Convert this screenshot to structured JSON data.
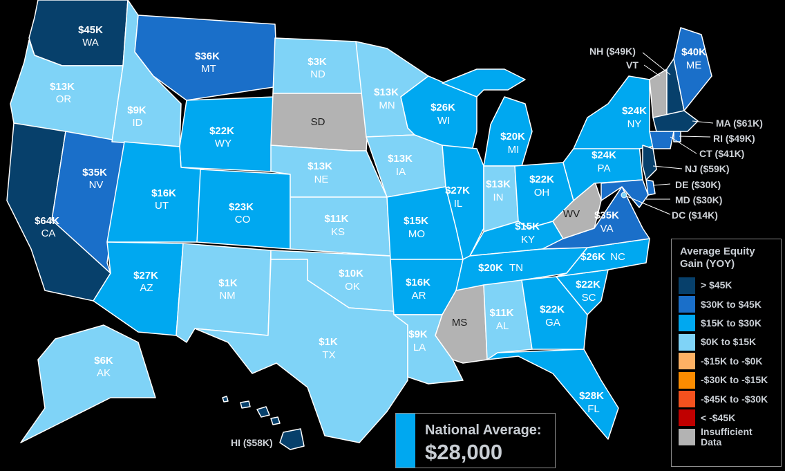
{
  "colors": {
    "dark": "#07406b",
    "mid": "#1a6fc9",
    "bright": "#00a8f0",
    "light": "#7fd3f7",
    "gray": "#b3b3b3",
    "lt_orange": "#fdb164",
    "orange": "#fb8c00",
    "red_orange": "#f4511e",
    "red": "#c00000"
  },
  "states": {
    "WA": {
      "value": "$45K",
      "code": "WA",
      "tier": "dark"
    },
    "OR": {
      "value": "$13K",
      "code": "OR",
      "tier": "light"
    },
    "CA": {
      "value": "$64K",
      "code": "CA",
      "tier": "dark"
    },
    "NV": {
      "value": "$35K",
      "code": "NV",
      "tier": "mid"
    },
    "ID": {
      "value": "$9K",
      "code": "ID",
      "tier": "light"
    },
    "MT": {
      "value": "$36K",
      "code": "MT",
      "tier": "mid"
    },
    "WY": {
      "value": "$22K",
      "code": "WY",
      "tier": "bright"
    },
    "UT": {
      "value": "$16K",
      "code": "UT",
      "tier": "bright"
    },
    "AZ": {
      "value": "$27K",
      "code": "AZ",
      "tier": "bright"
    },
    "CO": {
      "value": "$23K",
      "code": "CO",
      "tier": "bright"
    },
    "NM": {
      "value": "$1K",
      "code": "NM",
      "tier": "light"
    },
    "ND": {
      "value": "$3K",
      "code": "ND",
      "tier": "light"
    },
    "SD": {
      "value": "",
      "code": "SD",
      "tier": "gray"
    },
    "NE": {
      "value": "$13K",
      "code": "NE",
      "tier": "light"
    },
    "KS": {
      "value": "$11K",
      "code": "KS",
      "tier": "light"
    },
    "OK": {
      "value": "$10K",
      "code": "OK",
      "tier": "light"
    },
    "TX": {
      "value": "$1K",
      "code": "TX",
      "tier": "light"
    },
    "MN": {
      "value": "$13K",
      "code": "MN",
      "tier": "light"
    },
    "IA": {
      "value": "$13K",
      "code": "IA",
      "tier": "light"
    },
    "MO": {
      "value": "$15K",
      "code": "MO",
      "tier": "bright"
    },
    "AR": {
      "value": "$16K",
      "code": "AR",
      "tier": "bright"
    },
    "LA": {
      "value": "$9K",
      "code": "LA",
      "tier": "light"
    },
    "WI": {
      "value": "$26K",
      "code": "WI",
      "tier": "bright"
    },
    "IL": {
      "value": "$27K",
      "code": "IL",
      "tier": "bright"
    },
    "MI": {
      "value": "$20K",
      "code": "MI",
      "tier": "bright"
    },
    "IN": {
      "value": "$13K",
      "code": "IN",
      "tier": "light"
    },
    "OH": {
      "value": "$22K",
      "code": "OH",
      "tier": "bright"
    },
    "KY": {
      "value": "$15K",
      "code": "KY",
      "tier": "bright"
    },
    "TN": {
      "value": "$20K",
      "code": "TN",
      "tier": "bright"
    },
    "MS": {
      "value": "",
      "code": "MS",
      "tier": "gray"
    },
    "AL": {
      "value": "$11K",
      "code": "AL",
      "tier": "light"
    },
    "GA": {
      "value": "$22K",
      "code": "GA",
      "tier": "bright"
    },
    "FL": {
      "value": "$28K",
      "code": "FL",
      "tier": "bright"
    },
    "SC": {
      "value": "$22K",
      "code": "SC",
      "tier": "bright"
    },
    "NC": {
      "value": "$26K",
      "code": "NC",
      "tier": "bright"
    },
    "VA": {
      "value": "$35K",
      "code": "VA",
      "tier": "mid"
    },
    "WV": {
      "value": "",
      "code": "WV",
      "tier": "gray"
    },
    "PA": {
      "value": "$24K",
      "code": "PA",
      "tier": "bright"
    },
    "NY": {
      "value": "$24K",
      "code": "NY",
      "tier": "bright"
    },
    "ME": {
      "value": "$40K",
      "code": "ME",
      "tier": "mid"
    },
    "AK": {
      "value": "$6K",
      "code": "AK",
      "tier": "light"
    }
  },
  "callouts": {
    "NH": "NH ($49K)",
    "VT": "VT",
    "MA": "MA ($61K)",
    "RI": "RI ($49K)",
    "CT": "CT ($41K)",
    "NJ": "NJ ($59K)",
    "DE": "DE ($30K)",
    "MD": "MD ($30K)",
    "DC": "DC ($14K)",
    "HI": "HI ($58K)"
  },
  "legend": {
    "title_line1": "Average Equity",
    "title_line2": "Gain (YOY)",
    "items": [
      {
        "label": "> $45K",
        "color": "#07406b"
      },
      {
        "label": "$30K to $45K",
        "color": "#1a6fc9"
      },
      {
        "label": "$15K to $30K",
        "color": "#00a8f0"
      },
      {
        "label": "$0K to $15K",
        "color": "#7fd3f7"
      },
      {
        "label": "-$15K to -$0K",
        "color": "#fdb164"
      },
      {
        "label": "-$30K to -$15K",
        "color": "#fb8c00"
      },
      {
        "label": "-$45K to -$30K",
        "color": "#f4511e"
      },
      {
        "label": "< -$45K",
        "color": "#c00000"
      },
      {
        "label": "Insufficient Data",
        "color": "#b3b3b3"
      }
    ]
  },
  "national": {
    "label": "National Average:",
    "value": "$28,000"
  }
}
